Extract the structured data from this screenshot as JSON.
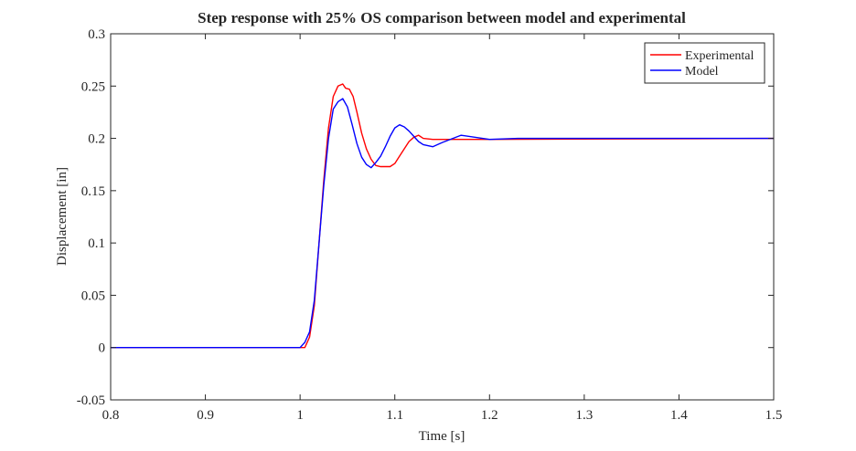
{
  "chart_data": {
    "type": "line",
    "title": "Step response with 25% OS comparison between model and experimental",
    "xlabel": "Time [s]",
    "ylabel": "Displacement [in]",
    "xlim": [
      0.8,
      1.5
    ],
    "ylim": [
      -0.05,
      0.3
    ],
    "xticks": [
      0.8,
      0.9,
      1.0,
      1.1,
      1.2,
      1.3,
      1.4,
      1.5
    ],
    "xtick_labels": [
      "0.8",
      "0.9",
      "1",
      "1.1",
      "1.2",
      "1.3",
      "1.4",
      "1.5"
    ],
    "yticks": [
      -0.05,
      0,
      0.05,
      0.1,
      0.15,
      0.2,
      0.25,
      0.3
    ],
    "ytick_labels": [
      "-0.05",
      "0",
      "0.05",
      "0.1",
      "0.15",
      "0.2",
      "0.25",
      "0.3"
    ],
    "grid": false,
    "legend_position": "top-right",
    "series": [
      {
        "name": "Experimental",
        "color": "#ff0000",
        "x": [
          0.8,
          1.005,
          1.01,
          1.015,
          1.02,
          1.025,
          1.03,
          1.035,
          1.04,
          1.045,
          1.048,
          1.052,
          1.056,
          1.06,
          1.065,
          1.07,
          1.075,
          1.08,
          1.085,
          1.09,
          1.095,
          1.1,
          1.105,
          1.11,
          1.115,
          1.12,
          1.125,
          1.13,
          1.14,
          1.2,
          1.5
        ],
        "y": [
          0,
          0,
          0.01,
          0.04,
          0.1,
          0.16,
          0.21,
          0.24,
          0.25,
          0.252,
          0.248,
          0.247,
          0.24,
          0.225,
          0.205,
          0.19,
          0.18,
          0.174,
          0.173,
          0.173,
          0.173,
          0.176,
          0.183,
          0.19,
          0.197,
          0.201,
          0.203,
          0.2,
          0.199,
          0.199,
          0.2
        ]
      },
      {
        "name": "Model",
        "color": "#0000ff",
        "x": [
          0.8,
          1.0,
          1.005,
          1.01,
          1.015,
          1.02,
          1.025,
          1.03,
          1.035,
          1.04,
          1.045,
          1.05,
          1.055,
          1.06,
          1.065,
          1.07,
          1.075,
          1.08,
          1.085,
          1.09,
          1.095,
          1.1,
          1.105,
          1.11,
          1.115,
          1.12,
          1.125,
          1.13,
          1.14,
          1.15,
          1.17,
          1.2,
          1.23,
          1.26,
          1.3,
          1.5
        ],
        "y": [
          0,
          0,
          0.005,
          0.015,
          0.045,
          0.1,
          0.155,
          0.2,
          0.228,
          0.235,
          0.238,
          0.23,
          0.213,
          0.195,
          0.182,
          0.175,
          0.172,
          0.177,
          0.183,
          0.192,
          0.202,
          0.21,
          0.213,
          0.211,
          0.207,
          0.202,
          0.197,
          0.194,
          0.192,
          0.196,
          0.203,
          0.199,
          0.2,
          0.2,
          0.2,
          0.2
        ]
      }
    ]
  }
}
